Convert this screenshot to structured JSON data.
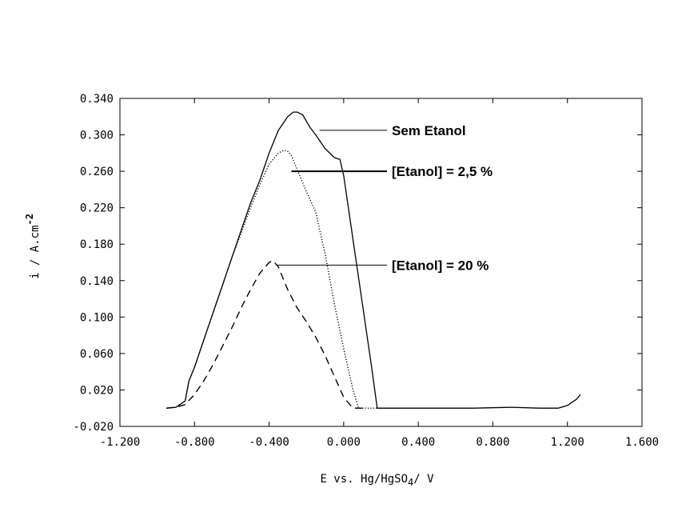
{
  "chart_data": {
    "type": "line",
    "title": "",
    "xlabel": "E vs. Hg/HgSO",
    "xlabel_subscript": "4",
    "xlabel_suffix": "/ V",
    "ylabel": "i / A.cm",
    "ylabel_superscript": "-2",
    "xlim": [
      -1.2,
      1.6
    ],
    "ylim": [
      -0.02,
      0.34
    ],
    "x_ticks": [
      "-1.200",
      "-0.800",
      "-0.400",
      "0.000",
      "0.400",
      "0.800",
      "1.200",
      "1.600"
    ],
    "x_tick_values": [
      -1.2,
      -0.8,
      -0.4,
      0.0,
      0.4,
      0.8,
      1.2,
      1.6
    ],
    "y_ticks": [
      "0.340",
      "0.300",
      "0.260",
      "0.220",
      "0.180",
      "0.140",
      "0.100",
      "0.060",
      "0.020",
      "-0.020"
    ],
    "y_tick_values": [
      0.34,
      0.3,
      0.26,
      0.22,
      0.18,
      0.14,
      0.1,
      0.06,
      0.02,
      -0.02
    ],
    "grid": false,
    "legend": "none",
    "series": [
      {
        "name": "Sem Etanol",
        "style": "solid",
        "x": [
          -0.95,
          -0.9,
          -0.85,
          -0.83,
          -0.8,
          -0.75,
          -0.7,
          -0.65,
          -0.6,
          -0.55,
          -0.5,
          -0.45,
          -0.4,
          -0.35,
          -0.3,
          -0.27,
          -0.25,
          -0.22,
          -0.2,
          -0.18,
          -0.15,
          -0.1,
          -0.05,
          -0.02,
          0.0,
          0.05,
          0.1,
          0.15,
          0.18,
          0.3,
          0.5,
          0.7,
          0.9,
          1.05,
          1.15,
          1.2,
          1.25,
          1.27
        ],
        "y": [
          0.0,
          0.001,
          0.008,
          0.03,
          0.045,
          0.075,
          0.105,
          0.135,
          0.165,
          0.195,
          0.225,
          0.25,
          0.28,
          0.305,
          0.32,
          0.325,
          0.325,
          0.322,
          0.315,
          0.308,
          0.3,
          0.285,
          0.275,
          0.273,
          0.255,
          0.185,
          0.115,
          0.045,
          0.0,
          0.0,
          0.0,
          0.0,
          0.001,
          0.0,
          0.0,
          0.003,
          0.01,
          0.015
        ]
      },
      {
        "name": "[Etanol] = 2,5 %",
        "style": "dotted",
        "x": [
          -0.95,
          -0.9,
          -0.85,
          -0.83,
          -0.8,
          -0.75,
          -0.7,
          -0.65,
          -0.6,
          -0.55,
          -0.5,
          -0.45,
          -0.4,
          -0.35,
          -0.32,
          -0.3,
          -0.28,
          -0.25,
          -0.2,
          -0.15,
          -0.1,
          -0.05,
          0.0,
          0.05,
          0.08,
          0.1,
          0.3
        ],
        "y": [
          0.0,
          0.001,
          0.008,
          0.03,
          0.045,
          0.075,
          0.105,
          0.135,
          0.165,
          0.192,
          0.22,
          0.245,
          0.268,
          0.28,
          0.283,
          0.282,
          0.277,
          0.262,
          0.238,
          0.215,
          0.17,
          0.115,
          0.065,
          0.02,
          0.0,
          0.0,
          0.0
        ]
      },
      {
        "name": "[Etanol] = 20 %",
        "style": "dashed",
        "x": [
          -0.95,
          -0.9,
          -0.85,
          -0.8,
          -0.75,
          -0.7,
          -0.65,
          -0.6,
          -0.55,
          -0.5,
          -0.45,
          -0.4,
          -0.38,
          -0.35,
          -0.3,
          -0.25,
          -0.2,
          -0.15,
          -0.1,
          -0.05,
          0.0,
          0.05,
          0.1
        ],
        "y": [
          0.0,
          0.001,
          0.004,
          0.015,
          0.03,
          0.048,
          0.068,
          0.088,
          0.11,
          0.13,
          0.148,
          0.16,
          0.162,
          0.155,
          0.13,
          0.11,
          0.095,
          0.078,
          0.058,
          0.035,
          0.012,
          0.0,
          0.0
        ]
      }
    ],
    "annotations": [
      {
        "text": "Sem Etanol",
        "series": 0,
        "x": -0.13,
        "y": 0.305,
        "label_y": 0.305
      },
      {
        "text": "[Etanol] = 2,5 %",
        "series": 1,
        "x": -0.28,
        "y": 0.26,
        "label_y": 0.26
      },
      {
        "text": "[Etanol] = 20 %",
        "series": 2,
        "x": -0.36,
        "y": 0.157,
        "label_y": 0.157
      }
    ]
  }
}
